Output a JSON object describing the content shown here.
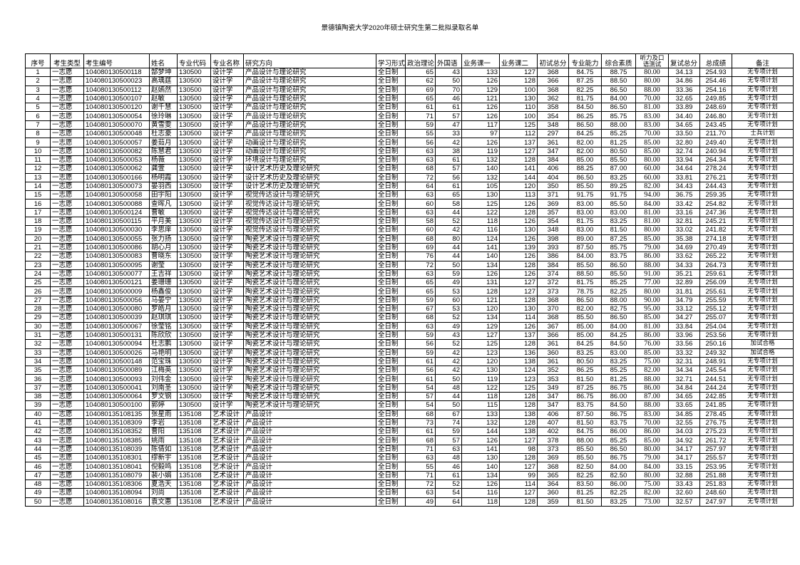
{
  "title": "景德镇陶瓷大学2020年硕士研究生第二批拟录取名单",
  "headers": [
    "序号",
    "考生类型",
    "考生编号",
    "姓名",
    "专业代码",
    "专业名称",
    "研究方向",
    "学习形式",
    "政治理论",
    "外国语",
    "业务课一",
    "业务课二",
    "初试总分",
    "专业能力",
    "综合素质",
    "听力及口语测试",
    "复试总分",
    "总成绩",
    "备注"
  ],
  "rows": [
    [
      "1",
      "一志愿",
      "104080130500118",
      "郜梦坤",
      "130500",
      "设计学",
      "产品设计与理论研究",
      "全日制",
      "65",
      "43",
      "133",
      "127",
      "368",
      "84.75",
      "88.75",
      "80.00",
      "34.13",
      "254.93",
      "无专项计划"
    ],
    [
      "2",
      "一志愿",
      "104080130500023",
      "高瑀莛",
      "130500",
      "设计学",
      "产品设计与理论研究",
      "全日制",
      "62",
      "50",
      "126",
      "128",
      "366",
      "87.25",
      "88.50",
      "80.00",
      "34.86",
      "254.46",
      "无专项计划"
    ],
    [
      "3",
      "一志愿",
      "104080130500112",
      "赵嫣然",
      "130500",
      "设计学",
      "产品设计与理论研究",
      "全日制",
      "69",
      "70",
      "129",
      "100",
      "368",
      "82.25",
      "86.50",
      "88.00",
      "33.36",
      "254.16",
      "无专项计划"
    ],
    [
      "4",
      "一志愿",
      "104080130500107",
      "赵敏",
      "130500",
      "设计学",
      "产品设计与理论研究",
      "全日制",
      "65",
      "46",
      "121",
      "130",
      "362",
      "81.75",
      "84.00",
      "70.00",
      "32.65",
      "249.85",
      "无专项计划"
    ],
    [
      "5",
      "一志愿",
      "104080130500120",
      "谢千慧",
      "130500",
      "设计学",
      "产品设计与理论研究",
      "全日制",
      "61",
      "61",
      "126",
      "110",
      "358",
      "84.50",
      "86.50",
      "81.00",
      "33.89",
      "248.69",
      "无专项计划"
    ],
    [
      "6",
      "一志愿",
      "104080130500054",
      "徐玲琳",
      "130500",
      "设计学",
      "产品设计与理论研究",
      "全日制",
      "71",
      "57",
      "126",
      "100",
      "354",
      "86.25",
      "85.75",
      "83.00",
      "34.40",
      "246.80",
      "无专项计划"
    ],
    [
      "7",
      "一志愿",
      "104080130500070",
      "黄雪雯",
      "130500",
      "设计学",
      "产品设计与理论研究",
      "全日制",
      "59",
      "47",
      "117",
      "125",
      "348",
      "86.50",
      "88.00",
      "83.00",
      "34.65",
      "243.45",
      "无专项计划"
    ],
    [
      "8",
      "一志愿",
      "104080130500048",
      "杜志豪",
      "130500",
      "设计学",
      "产品设计与理论研究",
      "全日制",
      "55",
      "33",
      "97",
      "112",
      "297",
      "84.25",
      "85.25",
      "70.00",
      "33.50",
      "211.70",
      "士兵计划"
    ],
    [
      "9",
      "一志愿",
      "104080130500057",
      "姜茹月",
      "130500",
      "设计学",
      "动画设计与理论研究",
      "全日制",
      "56",
      "42",
      "126",
      "137",
      "361",
      "82.00",
      "81.25",
      "85.00",
      "32.80",
      "249.40",
      "无专项计划"
    ],
    [
      "10",
      "一志愿",
      "104080130500082",
      "陈慧君",
      "130500",
      "设计学",
      "动画设计与理论研究",
      "全日制",
      "63",
      "38",
      "119",
      "127",
      "347",
      "82.00",
      "80.50",
      "85.00",
      "32.74",
      "240.94",
      "无专项计划"
    ],
    [
      "11",
      "一志愿",
      "104080130500053",
      "杨薇",
      "130500",
      "设计学",
      "环境设计与理论研究",
      "全日制",
      "63",
      "61",
      "132",
      "128",
      "384",
      "85.00",
      "85.50",
      "80.00",
      "33.94",
      "264.34",
      "无专项计划"
    ],
    [
      "12",
      "一志愿",
      "104080130500062",
      "龚萱",
      "130500",
      "设计学",
      "设计艺术历史及理论研究",
      "全日制",
      "68",
      "57",
      "140",
      "141",
      "406",
      "88.25",
      "87.00",
      "60.00",
      "34.64",
      "278.24",
      "无专项计划"
    ],
    [
      "13",
      "一志愿",
      "104080130500166",
      "杨明霞",
      "130500",
      "设计学",
      "设计艺术历史及理论研究",
      "全日制",
      "72",
      "56",
      "132",
      "144",
      "404",
      "86.50",
      "83.25",
      "60.00",
      "33.81",
      "276.21",
      "无专项计划"
    ],
    [
      "14",
      "一志愿",
      "104080130500073",
      "晏羽西",
      "130500",
      "设计学",
      "设计艺术历史及理论研究",
      "全日制",
      "64",
      "61",
      "105",
      "120",
      "350",
      "85.50",
      "89.25",
      "82.00",
      "34.43",
      "244.43",
      "无专项计划"
    ],
    [
      "15",
      "一志愿",
      "104080130500058",
      "田宇阳",
      "130500",
      "设计学",
      "视觉传达设计与理论研究",
      "全日制",
      "63",
      "65",
      "130",
      "113",
      "371",
      "91.75",
      "91.75",
      "94.00",
      "36.75",
      "259.35",
      "无专项计划"
    ],
    [
      "16",
      "一志愿",
      "104080130500088",
      "查晖凡",
      "130500",
      "设计学",
      "视觉传达设计与理论研究",
      "全日制",
      "60",
      "58",
      "125",
      "126",
      "369",
      "83.00",
      "85.50",
      "84.00",
      "33.42",
      "254.82",
      "无专项计划"
    ],
    [
      "17",
      "一志愿",
      "104080130500124",
      "曹敏",
      "130500",
      "设计学",
      "视觉传达设计与理论研究",
      "全日制",
      "63",
      "44",
      "122",
      "128",
      "357",
      "83.00",
      "83.00",
      "81.00",
      "33.16",
      "247.36",
      "无专项计划"
    ],
    [
      "18",
      "一志愿",
      "104080130500115",
      "平月美",
      "130500",
      "设计学",
      "视觉传达设计与理论研究",
      "全日制",
      "58",
      "52",
      "118",
      "126",
      "354",
      "81.75",
      "83.25",
      "81.00",
      "32.81",
      "245.21",
      "无专项计划"
    ],
    [
      "19",
      "一志愿",
      "104080130500030",
      "李思庠",
      "130500",
      "设计学",
      "视觉传达设计与理论研究",
      "全日制",
      "60",
      "42",
      "116",
      "130",
      "348",
      "83.00",
      "81.50",
      "80.00",
      "33.02",
      "241.82",
      "无专项计划"
    ],
    [
      "20",
      "一志愿",
      "104080130500055",
      "张力扬",
      "130500",
      "设计学",
      "陶瓷艺术设计与理论研究",
      "全日制",
      "68",
      "80",
      "124",
      "126",
      "398",
      "89.00",
      "87.25",
      "85.00",
      "35.38",
      "274.18",
      "无专项计划"
    ],
    [
      "21",
      "一志愿",
      "104080130500086",
      "胡心月",
      "130500",
      "设计学",
      "陶瓷艺术设计与理论研究",
      "全日制",
      "69",
      "44",
      "141",
      "139",
      "393",
      "87.50",
      "85.75",
      "79.00",
      "34.69",
      "270.49",
      "无专项计划"
    ],
    [
      "22",
      "一志愿",
      "104080130500083",
      "曹晓东",
      "130500",
      "设计学",
      "陶瓷艺术设计与理论研究",
      "全日制",
      "76",
      "44",
      "140",
      "126",
      "386",
      "84.00",
      "83.75",
      "86.00",
      "33.62",
      "265.22",
      "无专项计划"
    ],
    [
      "23",
      "一志愿",
      "104080130500095",
      "谢莹",
      "130500",
      "设计学",
      "陶瓷艺术设计与理论研究",
      "全日制",
      "72",
      "50",
      "134",
      "128",
      "384",
      "85.50",
      "86.50",
      "88.00",
      "34.33",
      "264.73",
      "无专项计划"
    ],
    [
      "24",
      "一志愿",
      "104080130500077",
      "王吉祥",
      "130500",
      "设计学",
      "陶瓷艺术设计与理论研究",
      "全日制",
      "63",
      "59",
      "126",
      "126",
      "374",
      "88.50",
      "85.50",
      "91.00",
      "35.21",
      "259.61",
      "无专项计划"
    ],
    [
      "25",
      "一志愿",
      "104080130500121",
      "姜珊珊",
      "130500",
      "设计学",
      "陶瓷艺术设计与理论研究",
      "全日制",
      "65",
      "49",
      "131",
      "127",
      "372",
      "81.75",
      "85.25",
      "77.00",
      "32.89",
      "256.09",
      "无专项计划"
    ],
    [
      "26",
      "一志愿",
      "104080130500009",
      "杨鑫俊",
      "130500",
      "设计学",
      "陶瓷艺术设计与理论研究",
      "全日制",
      "65",
      "53",
      "128",
      "127",
      "373",
      "78.75",
      "82.25",
      "80.00",
      "31.81",
      "255.61",
      "无专项计划"
    ],
    [
      "27",
      "一志愿",
      "104080130500056",
      "马晏宁",
      "130500",
      "设计学",
      "陶瓷艺术设计与理论研究",
      "全日制",
      "59",
      "60",
      "121",
      "128",
      "368",
      "86.50",
      "88.00",
      "90.00",
      "34.79",
      "255.59",
      "无专项计划"
    ],
    [
      "28",
      "一志愿",
      "104080130500080",
      "罗皓月",
      "130500",
      "设计学",
      "陶瓷艺术设计与理论研究",
      "全日制",
      "67",
      "53",
      "120",
      "130",
      "370",
      "82.00",
      "82.75",
      "95.00",
      "33.12",
      "255.12",
      "无专项计划"
    ],
    [
      "29",
      "一志愿",
      "104080130500039",
      "赵琪琪",
      "130500",
      "设计学",
      "陶瓷艺术设计与理论研究",
      "全日制",
      "68",
      "52",
      "134",
      "114",
      "368",
      "85.50",
      "86.50",
      "85.00",
      "34.27",
      "255.07",
      "无专项计划"
    ],
    [
      "30",
      "一志愿",
      "104080130500067",
      "徐莹铭",
      "130500",
      "设计学",
      "陶瓷艺术设计与理论研究",
      "全日制",
      "63",
      "49",
      "129",
      "126",
      "367",
      "85.00",
      "84.00",
      "81.00",
      "33.84",
      "254.04",
      "无专项计划"
    ],
    [
      "31",
      "一志愿",
      "104080130500131",
      "陈欣欣",
      "130500",
      "设计学",
      "陶瓷艺术设计与理论研究",
      "全日制",
      "59",
      "43",
      "127",
      "137",
      "366",
      "85.00",
      "84.25",
      "86.00",
      "33.96",
      "253.56",
      "无专项计划"
    ],
    [
      "32",
      "一志愿",
      "104080130500094",
      "杜志鹏",
      "130500",
      "设计学",
      "陶瓷艺术设计与理论研究",
      "全日制",
      "56",
      "52",
      "125",
      "128",
      "361",
      "84.25",
      "84.50",
      "76.00",
      "33.56",
      "250.16",
      "加试合格"
    ],
    [
      "33",
      "一志愿",
      "104080130500026",
      "马艳明",
      "130500",
      "设计学",
      "陶瓷艺术设计与理论研究",
      "全日制",
      "59",
      "42",
      "123",
      "136",
      "360",
      "83.25",
      "83.00",
      "85.00",
      "33.32",
      "249.32",
      "加试合格"
    ],
    [
      "34",
      "一志愿",
      "104080130500148",
      "范宝珠",
      "130500",
      "设计学",
      "陶瓷艺术设计与理论研究",
      "全日制",
      "61",
      "42",
      "120",
      "138",
      "361",
      "80.50",
      "83.25",
      "75.00",
      "32.31",
      "248.91",
      "无专项计划"
    ],
    [
      "35",
      "一志愿",
      "104080130500089",
      "江梅英",
      "130500",
      "设计学",
      "陶瓷艺术设计与理论研究",
      "全日制",
      "56",
      "42",
      "130",
      "124",
      "352",
      "86.25",
      "85.25",
      "82.00",
      "34.34",
      "245.54",
      "无专项计划"
    ],
    [
      "36",
      "一志愿",
      "104080130500093",
      "刘伟金",
      "130500",
      "设计学",
      "陶瓷艺术设计与理论研究",
      "全日制",
      "61",
      "50",
      "119",
      "123",
      "353",
      "81.50",
      "81.25",
      "88.00",
      "32.71",
      "244.51",
      "无专项计划"
    ],
    [
      "37",
      "一志愿",
      "104080130500041",
      "刘南圣",
      "130500",
      "设计学",
      "陶瓷艺术设计与理论研究",
      "全日制",
      "54",
      "48",
      "122",
      "125",
      "349",
      "87.25",
      "86.75",
      "86.00",
      "34.84",
      "244.24",
      "无专项计划"
    ],
    [
      "38",
      "一志愿",
      "104080130500064",
      "罗文钢",
      "130500",
      "设计学",
      "陶瓷艺术设计与理论研究",
      "全日制",
      "57",
      "44",
      "118",
      "128",
      "347",
      "86.75",
      "86.00",
      "87.00",
      "34.65",
      "242.85",
      "无专项计划"
    ],
    [
      "39",
      "一志愿",
      "104080130500100",
      "郭婷",
      "130500",
      "设计学",
      "陶瓷艺术设计与理论研究",
      "全日制",
      "54",
      "50",
      "115",
      "128",
      "347",
      "83.75",
      "84.50",
      "88.00",
      "33.65",
      "241.85",
      "无专项计划"
    ],
    [
      "40",
      "一志愿",
      "104080135108135",
      "张星雨",
      "135108",
      "艺术设计",
      "产品设计",
      "全日制",
      "68",
      "67",
      "133",
      "138",
      "406",
      "87.50",
      "86.75",
      "83.00",
      "34.85",
      "278.45",
      "无专项计划"
    ],
    [
      "41",
      "一志愿",
      "104080135108309",
      "李岩",
      "135108",
      "艺术设计",
      "产品设计",
      "全日制",
      "73",
      "74",
      "132",
      "128",
      "407",
      "81.50",
      "83.75",
      "70.00",
      "32.55",
      "276.75",
      "无专项计划"
    ],
    [
      "42",
      "一志愿",
      "104080135108352",
      "曹阳",
      "135108",
      "艺术设计",
      "产品设计",
      "全日制",
      "61",
      "59",
      "144",
      "138",
      "402",
      "84.75",
      "86.00",
      "86.00",
      "34.03",
      "275.23",
      "无专项计划"
    ],
    [
      "43",
      "一志愿",
      "104080135108385",
      "姚雨",
      "135108",
      "艺术设计",
      "产品设计",
      "全日制",
      "68",
      "57",
      "126",
      "127",
      "378",
      "88.00",
      "85.25",
      "85.00",
      "34.92",
      "261.72",
      "无专项计划"
    ],
    [
      "44",
      "一志愿",
      "104080135108039",
      "陈倩如",
      "135108",
      "艺术设计",
      "产品设计",
      "全日制",
      "71",
      "63",
      "141",
      "98",
      "373",
      "85.50",
      "86.50",
      "80.00",
      "34.17",
      "257.97",
      "无专项计划"
    ],
    [
      "45",
      "一志愿",
      "104080135108301",
      "缪新宇",
      "135108",
      "艺术设计",
      "产品设计",
      "全日制",
      "63",
      "48",
      "130",
      "128",
      "369",
      "85.50",
      "86.75",
      "79.00",
      "34.17",
      "255.57",
      "无专项计划"
    ],
    [
      "46",
      "一志愿",
      "104080135108041",
      "倪毅鸣",
      "135108",
      "艺术设计",
      "产品设计",
      "全日制",
      "55",
      "46",
      "140",
      "127",
      "368",
      "82.50",
      "84.00",
      "84.00",
      "33.15",
      "253.95",
      "无专项计划"
    ],
    [
      "47",
      "一志愿",
      "104080135108079",
      "裴小娟",
      "135108",
      "艺术设计",
      "产品设计",
      "全日制",
      "71",
      "61",
      "134",
      "99",
      "365",
      "82.25",
      "82.50",
      "80.00",
      "32.88",
      "251.88",
      "无专项计划"
    ],
    [
      "48",
      "一志愿",
      "104080135108306",
      "夏浩天",
      "135108",
      "艺术设计",
      "产品设计",
      "全日制",
      "72",
      "52",
      "126",
      "114",
      "364",
      "83.50",
      "86.00",
      "75.00",
      "33.43",
      "251.83",
      "无专项计划"
    ],
    [
      "49",
      "一志愿",
      "104080135108094",
      "刘尚",
      "135108",
      "艺术设计",
      "产品设计",
      "全日制",
      "63",
      "54",
      "116",
      "127",
      "360",
      "81.25",
      "82.25",
      "82.00",
      "32.60",
      "248.60",
      "无专项计划"
    ],
    [
      "50",
      "一志愿",
      "104080135108016",
      "袁文惠",
      "135108",
      "艺术设计",
      "产品设计",
      "全日制",
      "49",
      "64",
      "118",
      "128",
      "359",
      "81.50",
      "83.25",
      "73.00",
      "32.57",
      "247.97",
      "无专项计划"
    ]
  ]
}
